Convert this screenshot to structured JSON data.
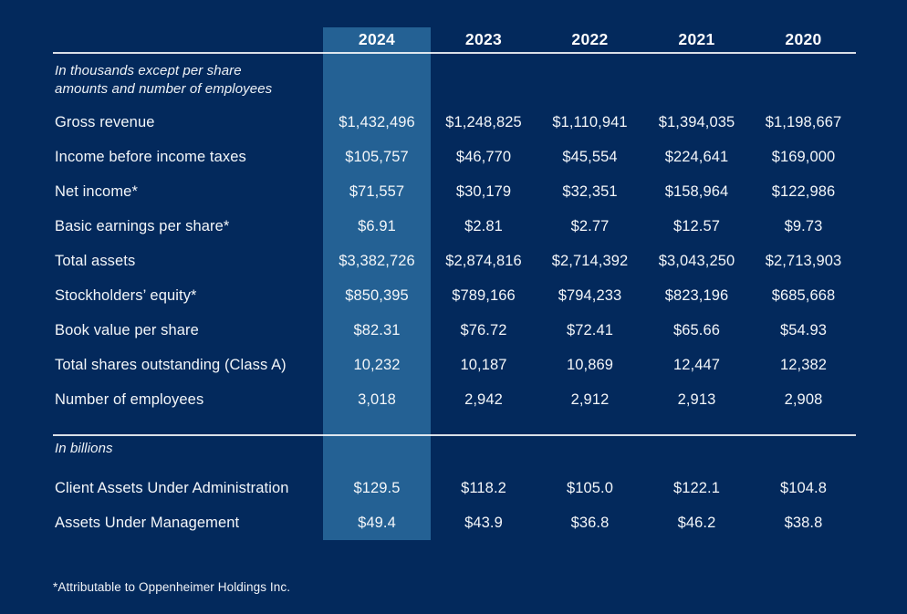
{
  "colors": {
    "background": "#03295c",
    "highlight_column": "#246194",
    "text": "#f3f6f9",
    "divider": "#ffffff"
  },
  "chart_data": {
    "type": "table",
    "columns": [
      "",
      "2024",
      "2023",
      "2022",
      "2021",
      "2020"
    ],
    "highlighted_column": "2024",
    "sections": [
      {
        "note_lines": [
          "In thousands except per share",
          "amounts and number of employees"
        ],
        "rows": [
          {
            "label": "Gross revenue",
            "values": [
              "$1,432,496",
              "$1,248,825",
              "$1,110,941",
              "$1,394,035",
              "$1,198,667"
            ]
          },
          {
            "label": "Income before income taxes",
            "values": [
              "$105,757",
              "$46,770",
              "$45,554",
              "$224,641",
              "$169,000"
            ]
          },
          {
            "label": "Net income*",
            "values": [
              "$71,557",
              "$30,179",
              "$32,351",
              "$158,964",
              "$122,986"
            ]
          },
          {
            "label": "Basic earnings per share*",
            "values": [
              "$6.91",
              "$2.81",
              "$2.77",
              "$12.57",
              "$9.73"
            ]
          },
          {
            "label": "Total assets",
            "values": [
              "$3,382,726",
              "$2,874,816",
              "$2,714,392",
              "$3,043,250",
              "$2,713,903"
            ]
          },
          {
            "label": "Stockholders’ equity*",
            "values": [
              "$850,395",
              "$789,166",
              "$794,233",
              "$823,196",
              "$685,668"
            ]
          },
          {
            "label": "Book value per share",
            "values": [
              "$82.31",
              "$76.72",
              "$72.41",
              "$65.66",
              "$54.93"
            ]
          },
          {
            "label": "Total shares outstanding (Class A)",
            "values": [
              "10,232",
              "10,187",
              "10,869",
              "12,447",
              "12,382"
            ]
          },
          {
            "label": "Number of employees",
            "values": [
              "3,018",
              "2,942",
              "2,912",
              "2,913",
              "2,908"
            ]
          }
        ]
      },
      {
        "note_lines": [
          "In billions"
        ],
        "rows": [
          {
            "label": "Client Assets Under Administration",
            "values": [
              "$129.5",
              "$118.2",
              "$105.0",
              "$122.1",
              "$104.8"
            ]
          },
          {
            "label": "Assets Under Management",
            "values": [
              "$49.4",
              "$43.9",
              "$36.8",
              "$46.2",
              "$38.8"
            ]
          }
        ]
      }
    ],
    "footnote": "*Attributable to Oppenheimer Holdings Inc."
  }
}
